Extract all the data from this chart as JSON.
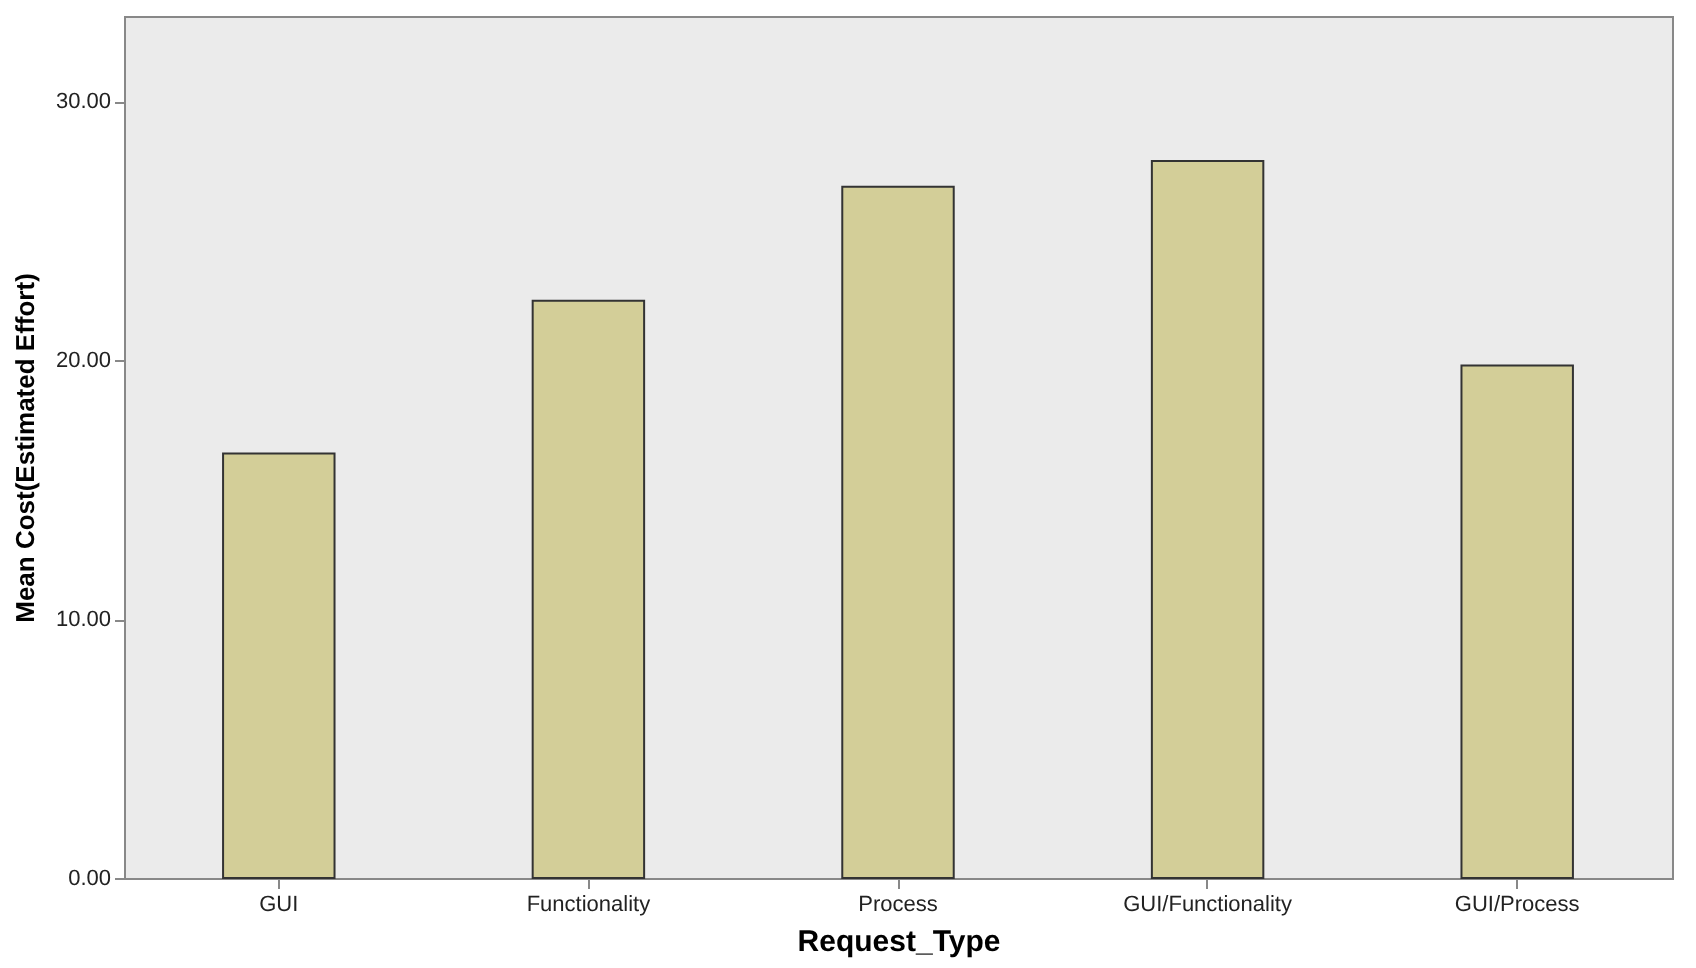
{
  "chart_data": {
    "type": "bar",
    "xlabel": "Request_Type",
    "ylabel": "Mean Cost(Estimated Effort)",
    "categories": [
      "GUI",
      "Functionality",
      "Process",
      "GUI/Functionality",
      "GUI/Process"
    ],
    "values": [
      16.4,
      22.3,
      26.7,
      27.7,
      19.8
    ],
    "color": "#d3ce98",
    "ylim": [
      0,
      33.3
    ],
    "yticks": [
      {
        "value": 0,
        "label": "0.00"
      },
      {
        "value": 10,
        "label": "10.00"
      },
      {
        "value": 20,
        "label": "20.00"
      },
      {
        "value": 30,
        "label": "30.00"
      }
    ],
    "grid": false
  }
}
